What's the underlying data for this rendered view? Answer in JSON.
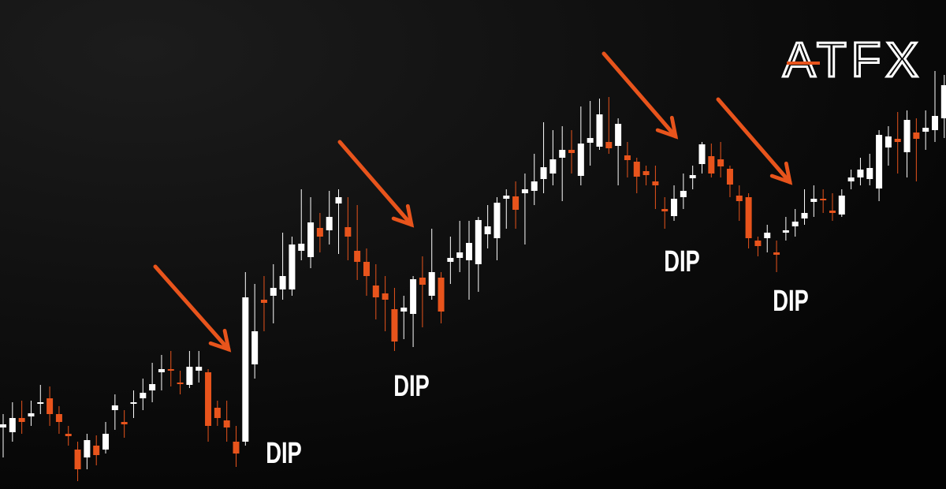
{
  "logo": "ATFX",
  "chart_data": {
    "type": "candlestick",
    "open": [
      78,
      72,
      90,
      92,
      108,
      115,
      95,
      70,
      50,
      40,
      55,
      50,
      100,
      85,
      108,
      115,
      125,
      148,
      152,
      135,
      132,
      150,
      148,
      103,
      87,
      60,
      60,
      158,
      240,
      245,
      253,
      253,
      302,
      294,
      331,
      328,
      362,
      332,
      302,
      288,
      258,
      248,
      228,
      225,
      222,
      268,
      245,
      268,
      288,
      293,
      290,
      285,
      323,
      318,
      368,
      371,
      375,
      378,
      393,
      400,
      420,
      430,
      397,
      439,
      434,
      440,
      435,
      423,
      415,
      403,
      390,
      355,
      346,
      370,
      394,
      412,
      422,
      418,
      406,
      372,
      370,
      315,
      318,
      300,
      325,
      333,
      343,
      364,
      368,
      353,
      348,
      390,
      395,
      393,
      381,
      433,
      444,
      427,
      452,
      453,
      455,
      470
    ],
    "close": [
      82,
      90,
      85,
      96,
      110,
      95,
      85,
      67,
      25,
      62,
      43,
      70,
      106,
      82,
      110,
      122,
      133,
      152,
      150,
      133,
      155,
      155,
      80,
      90,
      78,
      45,
      243,
      200,
      236,
      255,
      270,
      310,
      311,
      338,
      320,
      345,
      370,
      320,
      288,
      270,
      243,
      240,
      187,
      230,
      266,
      259,
      275,
      225,
      293,
      300,
      312,
      341,
      333,
      363,
      372,
      354,
      380,
      390,
      408,
      418,
      430,
      426,
      438,
      445,
      475,
      432,
      463,
      417,
      396,
      398,
      385,
      352,
      368,
      378,
      398,
      437,
      400,
      409,
      386,
      365,
      318,
      308,
      325,
      297,
      328,
      339,
      350,
      368,
      366,
      350,
      372,
      395,
      405,
      407,
      449,
      447,
      440,
      468,
      444,
      458,
      473,
      512
    ],
    "high": [
      95,
      110,
      112,
      112,
      132,
      130,
      105,
      80,
      60,
      70,
      68,
      85,
      120,
      100,
      125,
      140,
      160,
      170,
      175,
      150,
      175,
      175,
      152,
      112,
      112,
      80,
      275,
      260,
      270,
      285,
      325,
      320,
      380,
      370,
      350,
      378,
      380,
      370,
      360,
      305,
      285,
      270,
      255,
      245,
      270,
      295,
      330,
      275,
      320,
      340,
      340,
      345,
      360,
      370,
      380,
      390,
      400,
      425,
      465,
      455,
      460,
      455,
      485,
      492,
      495,
      497,
      470,
      440,
      420,
      410,
      410,
      370,
      385,
      400,
      410,
      440,
      438,
      440,
      410,
      385,
      375,
      320,
      335,
      315,
      345,
      355,
      380,
      385,
      380,
      375,
      380,
      405,
      420,
      425,
      455,
      460,
      478,
      480,
      470,
      480,
      530,
      525
    ],
    "low": [
      40,
      60,
      70,
      80,
      95,
      80,
      70,
      55,
      10,
      25,
      30,
      45,
      75,
      65,
      90,
      100,
      110,
      125,
      130,
      120,
      128,
      135,
      60,
      80,
      60,
      28,
      55,
      140,
      200,
      210,
      240,
      245,
      290,
      280,
      300,
      310,
      298,
      290,
      265,
      245,
      215,
      200,
      175,
      190,
      180,
      205,
      240,
      210,
      260,
      275,
      240,
      250,
      305,
      290,
      330,
      330,
      310,
      360,
      375,
      385,
      365,
      400,
      385,
      410,
      430,
      425,
      385,
      395,
      375,
      385,
      355,
      330,
      340,
      355,
      380,
      400,
      395,
      395,
      370,
      340,
      305,
      295,
      300,
      275,
      315,
      320,
      335,
      345,
      350,
      340,
      345,
      380,
      385,
      385,
      365,
      410,
      400,
      395,
      390,
      430,
      440,
      445
    ],
    "up_color": "#ffffff",
    "down_color": "#e8541c",
    "ylim": [
      0,
      620
    ],
    "annotations": [
      "DIP",
      "DIP",
      "DIP",
      "DIP"
    ]
  }
}
